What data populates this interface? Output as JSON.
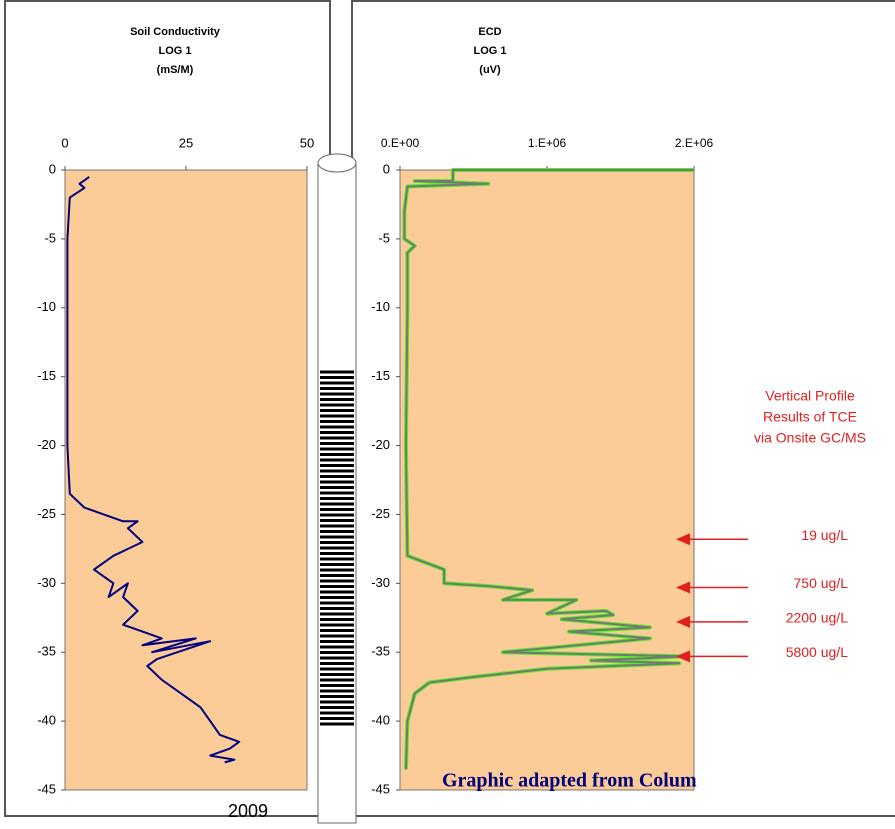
{
  "chart_data": [
    {
      "type": "line",
      "title": [
        "Soil Conductivity",
        "LOG 1",
        "(mS/M)"
      ],
      "color": "#00007f",
      "xlim": [
        0,
        50
      ],
      "xticks": [
        0,
        25,
        50
      ],
      "ylim": [
        -45,
        0
      ],
      "yticks": [
        0,
        -5,
        -10,
        -15,
        -20,
        -25,
        -30,
        -35,
        -40,
        -45
      ],
      "x": [
        5,
        3,
        4,
        1,
        0.5,
        0.5,
        0.5,
        0.5,
        1,
        4,
        8,
        12,
        15,
        13,
        16,
        10,
        6,
        10,
        9,
        13,
        12,
        15,
        12,
        20,
        16,
        27,
        18,
        30,
        19,
        17,
        20,
        24,
        28,
        30,
        32,
        36,
        34,
        30,
        35,
        33
      ],
      "values": [
        -0.5,
        -1,
        -1.3,
        -2,
        -5,
        -10,
        -15,
        -20,
        -23.5,
        -24.5,
        -25,
        -25.5,
        -25.5,
        -26,
        -27,
        -28,
        -29,
        -30,
        -31,
        -30,
        -31,
        -32,
        -33,
        -34,
        -34.5,
        -34,
        -35,
        -34.2,
        -35.5,
        -36,
        -37,
        -38,
        -39,
        -40,
        -41,
        -41.5,
        -42,
        -42.5,
        -42.8,
        -43
      ]
    },
    {
      "type": "line",
      "title": [
        "ECD",
        "LOG 1",
        "(uV)"
      ],
      "color": "#777777",
      "glow_color": "#55ee22",
      "xlim": [
        0,
        2000000
      ],
      "xticks": [
        {
          "value": 0,
          "label": "0.E+00"
        },
        {
          "value": 1000000,
          "label": "1.E+06"
        },
        {
          "value": 2000000,
          "label": "2.E+06"
        }
      ],
      "ylim": [
        -45,
        0
      ],
      "yticks": [
        0,
        -5,
        -10,
        -15,
        -20,
        -25,
        -30,
        -35,
        -40,
        -45
      ],
      "x": [
        2000000,
        360000,
        360000,
        100000,
        600000,
        50000,
        30000,
        30000,
        100000,
        50000,
        50000,
        40000,
        50000,
        300000,
        300000,
        600000,
        900000,
        700000,
        1200000,
        1000000,
        1400000,
        1450000,
        1100000,
        1700000,
        1150000,
        1700000,
        700000,
        1950000,
        1300000,
        1900000,
        1000000,
        500000,
        200000,
        100000,
        50000,
        40000
      ],
      "values": [
        0,
        0,
        -0.8,
        -0.8,
        -1,
        -1.2,
        -3,
        -5,
        -5.5,
        -6,
        -10,
        -20,
        -28,
        -29,
        -30,
        -30.2,
        -30.5,
        -31.2,
        -31.2,
        -32.2,
        -32,
        -32.3,
        -32.6,
        -33.2,
        -33.5,
        -34,
        -35,
        -35.3,
        -35.6,
        -35.8,
        -36.2,
        -36.8,
        -37.2,
        -38,
        -40,
        -43.5
      ],
      "note": [
        "Vertical Profile",
        "Results of TCE",
        "via Onsite GC/MS"
      ],
      "annotations": [
        {
          "text": "19 ug/L",
          "y": -26.8
        },
        {
          "text": "750 ug/L",
          "y": -30.3
        },
        {
          "text": "2200 ug/L",
          "y": -32.8
        },
        {
          "text": "5800 ug/L",
          "y": -35.3
        }
      ]
    }
  ],
  "caption": "Graphic adapted from Colum",
  "year": "2009"
}
